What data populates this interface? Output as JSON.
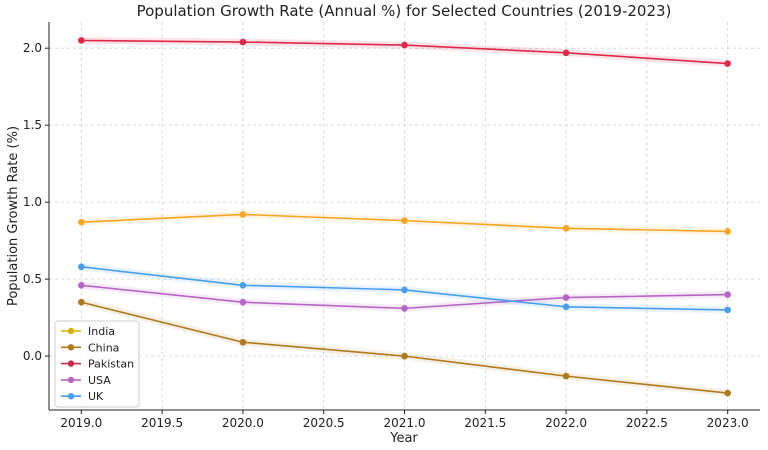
{
  "chart_data": {
    "type": "line",
    "title": "Population Growth Rate (Annual %) for Selected Countries (2019-2023)",
    "xlabel": "Year",
    "ylabel": "Population Growth Rate (%)",
    "x": [
      2019,
      2020,
      2021,
      2022,
      2023
    ],
    "xlim": [
      2018.8,
      2023.2
    ],
    "ylim": [
      -0.35,
      2.17
    ],
    "xticks": [
      2019.0,
      2019.5,
      2020.0,
      2020.5,
      2021.0,
      2021.5,
      2022.0,
      2022.5,
      2023.0
    ],
    "xtick_labels": [
      "2019.0",
      "2019.5",
      "2020.0",
      "2020.5",
      "2021.0",
      "2021.5",
      "2022.0",
      "2022.5",
      "2023.0"
    ],
    "yticks": [
      0.0,
      0.5,
      1.0,
      1.5,
      2.0
    ],
    "ytick_labels": [
      "0.0",
      "0.5",
      "1.0",
      "1.5",
      "2.0"
    ],
    "grid": true,
    "legend_position": "lower-left",
    "series": [
      {
        "name": "India",
        "color": "#f5a623",
        "legend_color": "#d4b300",
        "values": [
          0.87,
          0.92,
          0.88,
          0.83,
          0.81
        ]
      },
      {
        "name": "China",
        "color": "#b07a1e",
        "legend_color": "#b07a1e",
        "values": [
          0.35,
          0.09,
          0.0,
          -0.13,
          -0.24
        ]
      },
      {
        "name": "Pakistan",
        "color": "#e0294a",
        "legend_color": "#c0304a",
        "values": [
          2.05,
          2.04,
          2.02,
          1.97,
          1.9
        ]
      },
      {
        "name": "USA",
        "color": "#b866c6",
        "legend_color": "#b866c6",
        "values": [
          0.46,
          0.35,
          0.31,
          0.38,
          0.4
        ]
      },
      {
        "name": "UK",
        "color": "#4a9ef0",
        "legend_color": "#4a9ef0",
        "values": [
          0.58,
          0.46,
          0.43,
          0.32,
          0.3
        ]
      }
    ]
  }
}
